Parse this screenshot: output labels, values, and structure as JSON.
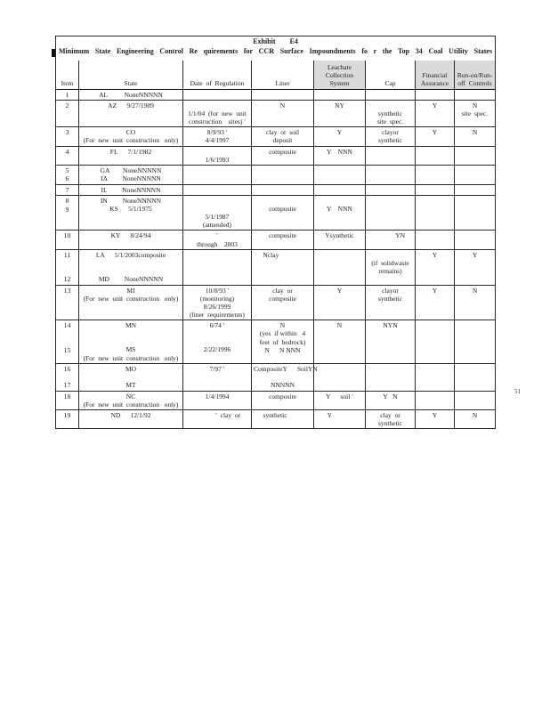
{
  "page": {
    "number": "51"
  },
  "table": {
    "exhibit_line": "Exhibit        E4",
    "title": "Minimum State Engineering Control Re quirements for CCR Surface Impoundments fo r the Top 34 Coal Utility States",
    "columns": [
      {
        "key": "item",
        "label": [
          "Item"
        ],
        "shaded": false
      },
      {
        "key": "state",
        "label": [
          "State"
        ],
        "shaded": false
      },
      {
        "key": "date",
        "label": [
          "Date  of  Regulation"
        ],
        "shaded": false
      },
      {
        "key": "liner",
        "label": [
          "Liner"
        ],
        "shaded": false
      },
      {
        "key": "leachate",
        "label": [
          "Leachate",
          "Collection",
          "System"
        ],
        "shaded": true
      },
      {
        "key": "cap",
        "label": [
          "Cap"
        ],
        "shaded": false
      },
      {
        "key": "fa",
        "label": [
          "Financial",
          "Assurance"
        ],
        "shaded": true
      },
      {
        "key": "runoff",
        "label": [
          "Run-on/Run-",
          "off  Controls"
        ],
        "shaded": true
      }
    ],
    "rows": [
      {
        "item": [
          "1"
        ],
        "state": [
          "AL          NoneNNNNN"
        ]
      },
      {
        "item": [
          "2"
        ],
        "state": [
          "AZ      9/27/1989"
        ],
        "date": [
          "",
          "1/1/04  (for  new  unit",
          "construction    sites) ′"
        ],
        "liner": [
          "N"
        ],
        "leachate": [
          "NY"
        ],
        "cap": [
          "",
          "synthetic",
          "site  spec."
        ],
        "fa": [
          "Y"
        ],
        "runoff": [
          "N",
          "site  spec."
        ]
      },
      {
        "item": [
          "3"
        ],
        "state": [
          "CO",
          "(For  new  unit  construction   only)"
        ],
        "date": [
          "8/9/93 ′",
          "4/4/1997"
        ],
        "liner": [
          "clay  or  soil",
          "deposit"
        ],
        "leachate": [
          "Y"
        ],
        "cap": [
          "clayor",
          "synthetic"
        ],
        "fa": [
          "Y"
        ],
        "runoff": [
          "N"
        ]
      },
      {
        "item": [
          "4"
        ],
        "state": [
          "FL      7/1/1982"
        ],
        "date": [
          "",
          "1/6/1993"
        ],
        "liner": [
          "composite"
        ],
        "leachate": [
          "Y    NNN"
        ]
      },
      {
        "item": [
          "5",
          "6"
        ],
        "state": [
          "GA        NoneNNNNN",
          "IA         NoneNNNNN"
        ]
      },
      {
        "item": [
          "7"
        ],
        "state": [
          "IL         NoneNNNNN"
        ]
      },
      {
        "item": [
          "8",
          "9"
        ],
        "state": [
          "IN         NoneNNNNN",
          "KS      5/1/1975"
        ],
        "date": [
          "",
          "",
          "5/1/1987",
          "(amended)"
        ],
        "liner": [
          "",
          "composite"
        ],
        "leachate": [
          "",
          "Y    NNN"
        ]
      },
      {
        "item": [
          "10"
        ],
        "state": [
          "KY      8/24/94"
        ],
        "date": [
          "′",
          "through    2003"
        ],
        "liner": [
          "composite"
        ],
        "leachate": [
          "Ysynthetic"
        ],
        "cap": [
          "            YN"
        ]
      },
      {
        "item": [
          "11",
          "",
          "",
          "12"
        ],
        "state": [
          "LA      5/1/2003composite",
          "",
          "",
          "MD         NoneNNNNN"
        ],
        "liner": [
          "Nclay              "
        ],
        "cap": [
          "",
          "(if  solidwaste",
          "remains)"
        ],
        "fa": [
          "Y"
        ],
        "runoff": [
          "Y"
        ]
      },
      {
        "item": [
          "13"
        ],
        "state": [
          "MI",
          "(For  new  unit  construction   only)"
        ],
        "date": [
          "10/8/93 ′",
          "(monitoring)",
          "8/26/1999",
          "(liner  requirements)"
        ],
        "liner": [
          "clay  or",
          "composite"
        ],
        "leachate": [
          "Y"
        ],
        "cap": [
          "clayor",
          "synthetic"
        ],
        "fa": [
          "Y"
        ],
        "runoff": [
          "N"
        ]
      },
      {
        "item": [
          "14",
          "",
          "",
          "15"
        ],
        "state": [
          "MN",
          "",
          "",
          "MS",
          "(For  new  unit  construction   only)"
        ],
        "date": [
          "6/74 ′",
          "",
          "",
          "2/22/1996"
        ],
        "liner": [
          "N",
          "(yes  if within   4",
          "feet  of  bedrock)",
          "N      N NNN"
        ],
        "leachate": [
          "N"
        ],
        "cap": [
          "NYN"
        ]
      },
      {
        "item": [
          "16",
          "",
          "17"
        ],
        "state": [
          "MO",
          "",
          "MT"
        ],
        "date": [
          "7/97 ′"
        ],
        "liner": [
          "CompositeY      SoilYN",
          "",
          "NNNNN"
        ]
      },
      {
        "item": [
          "18"
        ],
        "state": [
          "NC",
          "(For  new  unit  construction   only)"
        ],
        "date": [
          "1/4/1994"
        ],
        "liner": [
          "composite"
        ],
        "leachate": [
          "Y      soil ′"
        ],
        "cap": [
          "Y   N"
        ]
      },
      {
        "item": [
          "19"
        ],
        "state": [
          "ND      12/1/92"
        ],
        "date": [
          "             ′  clay  or"
        ],
        "liner": [
          "synthetic         "
        ],
        "leachate": [
          "Y            "
        ],
        "cap": [
          "clay  or",
          "synthetic"
        ],
        "fa": [
          "Y"
        ],
        "runoff": [
          "N"
        ]
      }
    ]
  }
}
